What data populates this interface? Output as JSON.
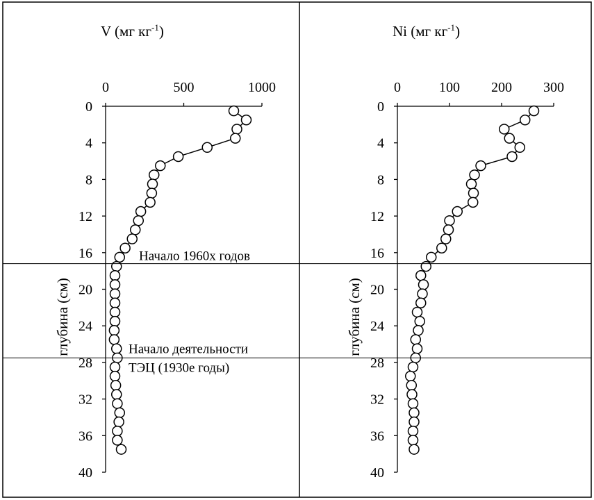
{
  "chart_data": [
    {
      "type": "scatter",
      "title": "V (мг кг",
      "title_sup": "-1",
      "title_close": ")",
      "ylabel": "глубина (см)",
      "xlim": [
        0,
        1000
      ],
      "ylim": [
        0,
        40
      ],
      "y_inverted": true,
      "x_axis_position": "top",
      "x_ticks": [
        0,
        500,
        1000
      ],
      "y_ticks": [
        0,
        4,
        8,
        12,
        16,
        20,
        24,
        28,
        32,
        36,
        40
      ],
      "marker": "circle",
      "marker_fill": "#ffffff",
      "line": true,
      "series": [
        {
          "x": [
            820,
            900,
            840,
            830,
            650,
            465,
            350,
            310,
            300,
            295,
            285,
            225,
            210,
            190,
            170,
            125,
            90,
            70,
            60,
            60,
            60,
            60,
            60,
            60,
            55,
            55,
            70,
            75,
            60,
            60,
            65,
            70,
            75,
            90,
            85,
            75,
            75,
            100
          ],
          "y": [
            0.5,
            1.5,
            2.5,
            3.5,
            4.5,
            5.5,
            6.5,
            7.5,
            8.5,
            9.5,
            10.5,
            11.5,
            12.5,
            13.5,
            14.5,
            15.5,
            16.5,
            17.5,
            18.5,
            19.5,
            20.5,
            21.5,
            22.5,
            23.5,
            24.5,
            25.5,
            26.5,
            27.5,
            28.5,
            29.5,
            30.5,
            31.5,
            32.5,
            33.5,
            34.5,
            35.5,
            36.5,
            37.5
          ]
        }
      ]
    },
    {
      "type": "scatter",
      "title": "Ni (мг кг",
      "title_sup": "-1",
      "title_close": ")",
      "ylabel": "глубина (см)",
      "xlim": [
        0,
        300
      ],
      "ylim": [
        0,
        40
      ],
      "y_inverted": true,
      "x_axis_position": "top",
      "x_ticks": [
        0,
        100,
        200,
        300
      ],
      "y_ticks": [
        0,
        4,
        8,
        12,
        16,
        20,
        24,
        28,
        32,
        36,
        40
      ],
      "marker": "circle",
      "marker_fill": "#ffffff",
      "line": true,
      "series": [
        {
          "x": [
            262,
            245,
            205,
            215,
            235,
            220,
            160,
            148,
            142,
            146,
            145,
            115,
            100,
            98,
            93,
            85,
            65,
            55,
            45,
            50,
            48,
            45,
            38,
            43,
            40,
            35,
            38,
            35,
            30,
            25,
            27,
            28,
            30,
            32,
            32,
            30,
            30,
            32
          ],
          "y": [
            0.5,
            1.5,
            2.5,
            3.5,
            4.5,
            5.5,
            6.5,
            7.5,
            8.5,
            9.5,
            10.5,
            11.5,
            12.5,
            13.5,
            14.5,
            15.5,
            16.5,
            17.5,
            18.5,
            19.5,
            20.5,
            21.5,
            22.5,
            23.5,
            24.5,
            25.5,
            26.5,
            27.5,
            28.5,
            29.5,
            30.5,
            31.5,
            32.5,
            33.5,
            34.5,
            35.5,
            36.5,
            37.5
          ]
        }
      ]
    }
  ],
  "annotations": [
    {
      "text": "Начало 1960х годов",
      "depth": 17.2
    },
    {
      "text": "Начало деятельности",
      "text2": "ТЭЦ (1930е годы)",
      "depth": 27.5
    }
  ]
}
